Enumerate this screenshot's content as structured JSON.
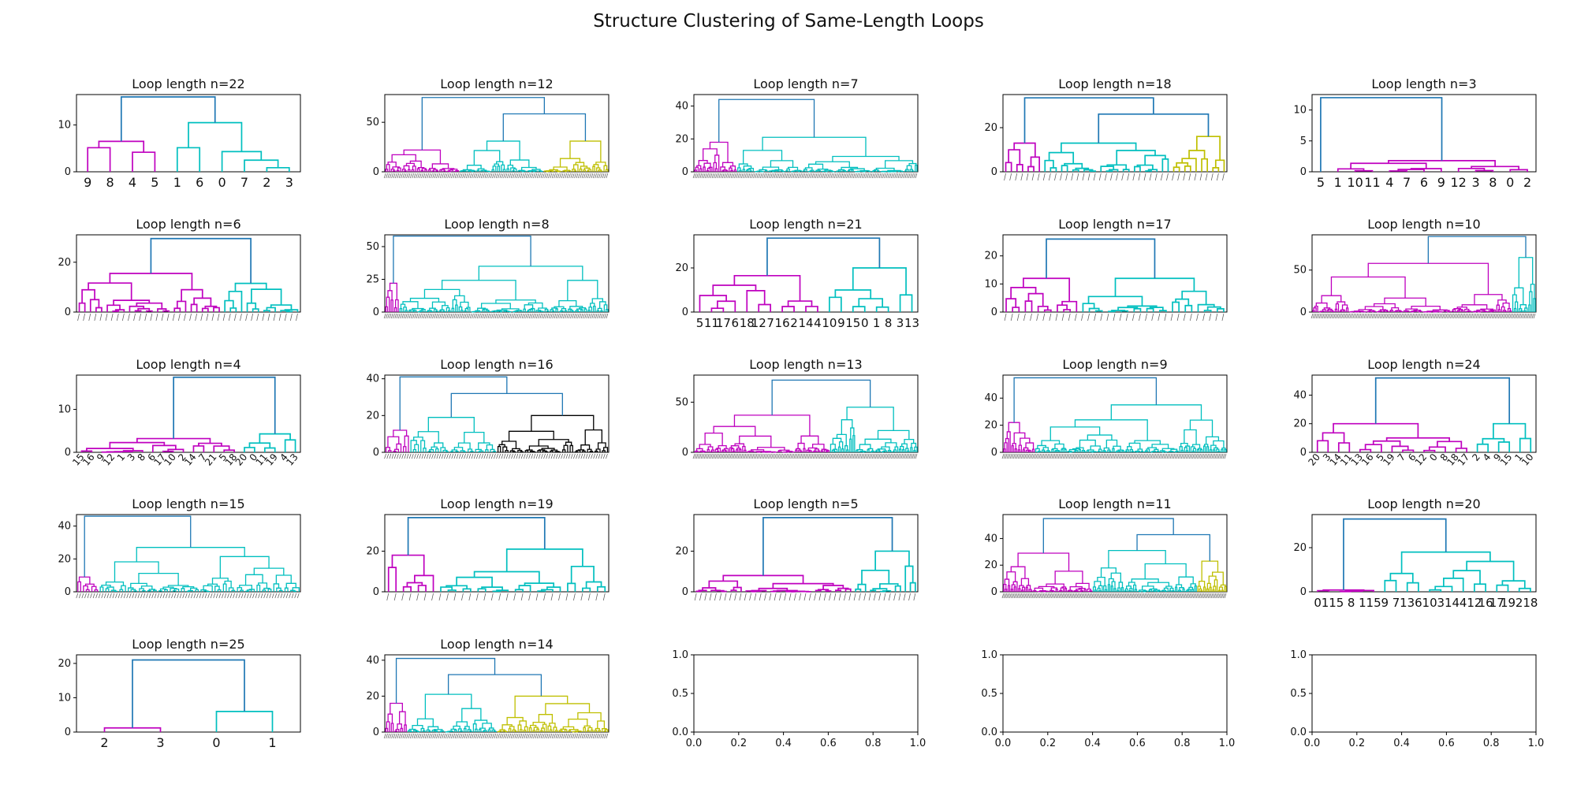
{
  "figure": {
    "title": "Structure Clustering of Same-Length Loops"
  },
  "colors": {
    "link_above_threshold": "#1f77b4",
    "cluster_palette": [
      "#bf00bf",
      "#00bfbf",
      "#bfbf00",
      "#000000"
    ]
  },
  "chart_data": [
    {
      "type": "dendrogram",
      "title": "Loop length n=22",
      "ylim": [
        0,
        16.5
      ],
      "yticks": [
        0,
        10
      ],
      "leaf_labels": [
        "9",
        "8",
        "4",
        "5",
        "1",
        "6",
        "0",
        "7",
        "2",
        "3"
      ],
      "leaf_label_style": "horizontal",
      "cluster_sizes": [
        4,
        6
      ],
      "cluster_colors": [
        "#bf00bf",
        "#00bfbf"
      ],
      "cluster_heights": [
        6.5,
        10.5
      ],
      "top_height": 16
    },
    {
      "type": "dendrogram",
      "title": "Loop length n=12",
      "ylim": [
        0,
        78
      ],
      "yticks": [
        0,
        50
      ],
      "leaf_count": 120,
      "leaf_label_style": "dense",
      "cluster_sizes": [
        40,
        45,
        35
      ],
      "cluster_colors": [
        "#bf00bf",
        "#00bfbf",
        "#bfbf00"
      ],
      "cluster_heights": [
        22,
        31,
        31
      ],
      "top_height": 75
    },
    {
      "type": "dendrogram",
      "title": "Loop length n=7",
      "ylim": [
        0,
        47
      ],
      "yticks": [
        0,
        20,
        40
      ],
      "leaf_count": 130,
      "leaf_label_style": "dense",
      "cluster_sizes": [
        25,
        105
      ],
      "cluster_colors": [
        "#bf00bf",
        "#00bfbf"
      ],
      "cluster_heights": [
        18,
        21
      ],
      "top_height": 44
    },
    {
      "type": "dendrogram",
      "title": "Loop length n=18",
      "ylim": [
        0,
        35
      ],
      "yticks": [
        0,
        20
      ],
      "leaf_count": 40,
      "leaf_label_style": "rotated",
      "cluster_sizes": [
        7,
        23,
        10
      ],
      "cluster_colors": [
        "#bf00bf",
        "#00bfbf",
        "#bfbf00"
      ],
      "cluster_heights": [
        13,
        13,
        16
      ],
      "top_height": 33.5
    },
    {
      "type": "dendrogram",
      "title": "Loop length n=3",
      "ylim": [
        0,
        12.5
      ],
      "yticks": [
        0,
        5,
        10
      ],
      "leaf_labels": [
        "5",
        "1",
        "10",
        "11",
        "4",
        "7",
        "6",
        "9",
        "12",
        "3",
        "8",
        "0",
        "2"
      ],
      "leaf_label_style": "horizontal",
      "cluster_sizes": [
        1,
        12
      ],
      "cluster_colors": [
        "#1f77b4",
        "#bf00bf"
      ],
      "cluster_heights": [
        0,
        1.8
      ],
      "top_height": 12
    },
    {
      "type": "dendrogram",
      "title": "Loop length n=6",
      "ylim": [
        0,
        31
      ],
      "yticks": [
        0,
        20
      ],
      "leaf_count": 40,
      "leaf_label_style": "rotated",
      "cluster_sizes": [
        26,
        14
      ],
      "cluster_colors": [
        "#bf00bf",
        "#00bfbf"
      ],
      "cluster_heights": [
        15.5,
        11.5
      ],
      "top_height": 29.5
    },
    {
      "type": "dendrogram",
      "title": "Loop length n=8",
      "ylim": [
        0,
        59
      ],
      "yticks": [
        0,
        25,
        50
      ],
      "leaf_count": 125,
      "leaf_label_style": "dense",
      "cluster_sizes": [
        8,
        117
      ],
      "cluster_colors": [
        "#bf00bf",
        "#00bfbf"
      ],
      "cluster_heights": [
        22,
        35
      ],
      "top_height": 58
    },
    {
      "type": "dendrogram",
      "title": "Loop length n=21",
      "ylim": [
        0,
        35
      ],
      "yticks": [
        0,
        20
      ],
      "leaf_labels": [
        "5",
        "11",
        "17",
        "6",
        "18",
        "12",
        "7",
        "16",
        "2",
        "14",
        "4",
        "10",
        "9",
        "15",
        "0",
        "1",
        "8",
        "3",
        "13"
      ],
      "leaf_label_style": "horizontal_tight",
      "cluster_sizes": [
        11,
        8
      ],
      "cluster_colors": [
        "#bf00bf",
        "#00bfbf"
      ],
      "cluster_heights": [
        16.5,
        20
      ],
      "top_height": 33.5
    },
    {
      "type": "dendrogram",
      "title": "Loop length n=17",
      "ylim": [
        0,
        27.5
      ],
      "yticks": [
        0,
        10,
        20
      ],
      "leaf_count": 35,
      "leaf_label_style": "rotated",
      "cluster_sizes": [
        12,
        23
      ],
      "cluster_colors": [
        "#bf00bf",
        "#00bfbf"
      ],
      "cluster_heights": [
        12,
        12
      ],
      "top_height": 26
    },
    {
      "type": "dendrogram",
      "title": "Loop length n=10",
      "ylim": [
        0,
        92
      ],
      "yticks": [
        0,
        50
      ],
      "leaf_count": 140,
      "leaf_label_style": "dense",
      "cluster_sizes": [
        125,
        15
      ],
      "cluster_colors": [
        "#bf00bf",
        "#00bfbf"
      ],
      "cluster_heights": [
        58,
        65
      ],
      "top_height": 90
    },
    {
      "type": "dendrogram",
      "title": "Loop length n=4",
      "ylim": [
        0,
        18
      ],
      "yticks": [
        0,
        10
      ],
      "leaf_labels": [
        "15",
        "16",
        "9",
        "12",
        "1",
        "3",
        "8",
        "6",
        "17",
        "10",
        "2",
        "14",
        "7",
        "21",
        "5",
        "18",
        "20",
        "0",
        "11",
        "19",
        "4",
        "13"
      ],
      "leaf_label_style": "rotated_sparse",
      "cluster_sizes": [
        16,
        6
      ],
      "cluster_colors": [
        "#bf00bf",
        "#00bfbf"
      ],
      "cluster_heights": [
        3.2,
        4.3
      ],
      "top_height": 17.5
    },
    {
      "type": "dendrogram",
      "title": "Loop length n=16",
      "ylim": [
        0,
        42
      ],
      "yticks": [
        0,
        20,
        40
      ],
      "leaf_count": 90,
      "leaf_label_style": "dense",
      "cluster_sizes": [
        10,
        35,
        45
      ],
      "cluster_colors": [
        "#bf00bf",
        "#00bfbf",
        "#000000"
      ],
      "cluster_heights": [
        12,
        19,
        20
      ],
      "top_height": 41
    },
    {
      "type": "dendrogram",
      "title": "Loop length n=13",
      "ylim": [
        0,
        77
      ],
      "yticks": [
        0,
        50
      ],
      "leaf_count": 140,
      "leaf_label_style": "dense",
      "cluster_sizes": [
        85,
        55
      ],
      "cluster_colors": [
        "#bf00bf",
        "#00bfbf"
      ],
      "cluster_heights": [
        37,
        45
      ],
      "top_height": 72
    },
    {
      "type": "dendrogram",
      "title": "Loop length n=9",
      "ylim": [
        0,
        57
      ],
      "yticks": [
        0,
        20,
        40
      ],
      "leaf_count": 140,
      "leaf_label_style": "dense",
      "cluster_sizes": [
        20,
        120
      ],
      "cluster_colors": [
        "#bf00bf",
        "#00bfbf"
      ],
      "cluster_heights": [
        22,
        35
      ],
      "top_height": 55
    },
    {
      "type": "dendrogram",
      "title": "Loop length n=24",
      "ylim": [
        0,
        54
      ],
      "yticks": [
        0,
        20,
        40
      ],
      "leaf_labels": [
        "20",
        "3",
        "14",
        "11",
        "13",
        "16",
        "5",
        "19",
        "7",
        "6",
        "12",
        "0",
        "8",
        "18",
        "17",
        "2",
        "4",
        "9",
        "15",
        "1",
        "10"
      ],
      "leaf_label_style": "rotated_sparse",
      "cluster_sizes": [
        15,
        6
      ],
      "cluster_colors": [
        "#bf00bf",
        "#00bfbf"
      ],
      "cluster_heights": [
        20,
        20
      ],
      "top_height": 52
    },
    {
      "type": "dendrogram",
      "title": "Loop length n=15",
      "ylim": [
        0,
        47
      ],
      "yticks": [
        0,
        20,
        40
      ],
      "leaf_count": 80,
      "leaf_label_style": "dense",
      "cluster_sizes": [
        8,
        72
      ],
      "cluster_colors": [
        "#bf00bf",
        "#00bfbf"
      ],
      "cluster_heights": [
        9,
        27
      ],
      "top_height": 46
    },
    {
      "type": "dendrogram",
      "title": "Loop length n=19",
      "ylim": [
        0,
        38
      ],
      "yticks": [
        0,
        20
      ],
      "leaf_count": 30,
      "leaf_label_style": "rotated",
      "cluster_sizes": [
        7,
        23
      ],
      "cluster_colors": [
        "#bf00bf",
        "#00bfbf"
      ],
      "cluster_heights": [
        18,
        21
      ],
      "top_height": 36.5
    },
    {
      "type": "dendrogram",
      "title": "Loop length n=5",
      "ylim": [
        0,
        38
      ],
      "yticks": [
        0,
        20
      ],
      "leaf_count": 45,
      "leaf_label_style": "rotated",
      "cluster_sizes": [
        32,
        13
      ],
      "cluster_colors": [
        "#bf00bf",
        "#00bfbf"
      ],
      "cluster_heights": [
        8,
        20
      ],
      "top_height": 36.5
    },
    {
      "type": "dendrogram",
      "title": "Loop length n=11",
      "ylim": [
        0,
        58
      ],
      "yticks": [
        0,
        20,
        40
      ],
      "leaf_count": 150,
      "leaf_label_style": "dense",
      "cluster_sizes": [
        60,
        70,
        20
      ],
      "cluster_colors": [
        "#bf00bf",
        "#00bfbf",
        "#bfbf00"
      ],
      "cluster_heights": [
        29,
        31,
        23
      ],
      "top_height": 55
    },
    {
      "type": "dendrogram",
      "title": "Loop length n=20",
      "ylim": [
        0,
        35
      ],
      "yticks": [
        0,
        20
      ],
      "leaf_labels": [
        "0",
        "11",
        "5",
        "8",
        "1",
        "15",
        "9",
        "7",
        "13",
        "6",
        "10",
        "3",
        "14",
        "4",
        "12",
        "16",
        "17",
        "19",
        "2",
        "18"
      ],
      "leaf_label_style": "horizontal_tight",
      "cluster_sizes": [
        6,
        14
      ],
      "cluster_colors": [
        "#bf00bf",
        "#00bfbf"
      ],
      "cluster_heights": [
        0.8,
        18
      ],
      "top_height": 33
    },
    {
      "type": "dendrogram",
      "title": "Loop length n=25",
      "ylim": [
        0,
        22.5
      ],
      "yticks": [
        0,
        10,
        20
      ],
      "leaf_labels": [
        "2",
        "3",
        "0",
        "1"
      ],
      "leaf_label_style": "horizontal",
      "cluster_sizes": [
        2,
        2
      ],
      "cluster_colors": [
        "#bf00bf",
        "#00bfbf"
      ],
      "cluster_heights": [
        1.2,
        6
      ],
      "top_height": 21
    },
    {
      "type": "dendrogram",
      "title": "Loop length n=14",
      "ylim": [
        0,
        43
      ],
      "yticks": [
        0,
        20,
        40
      ],
      "leaf_count": 120,
      "leaf_label_style": "dense",
      "cluster_sizes": [
        12,
        48,
        60
      ],
      "cluster_colors": [
        "#bf00bf",
        "#00bfbf",
        "#bfbf00"
      ],
      "cluster_heights": [
        16,
        21,
        20
      ],
      "top_height": 41
    },
    {
      "type": "empty",
      "title": "",
      "xlim": [
        0,
        1
      ],
      "ylim": [
        0,
        1
      ],
      "xticks": [
        "0.0",
        "0.2",
        "0.4",
        "0.6",
        "0.8",
        "1.0"
      ],
      "yticks": [
        "0.0",
        "0.5",
        "1.0"
      ]
    },
    {
      "type": "empty",
      "title": "",
      "xlim": [
        0,
        1
      ],
      "ylim": [
        0,
        1
      ],
      "xticks": [
        "0.0",
        "0.2",
        "0.4",
        "0.6",
        "0.8",
        "1.0"
      ],
      "yticks": [
        "0.0",
        "0.5",
        "1.0"
      ]
    },
    {
      "type": "empty",
      "title": "",
      "xlim": [
        0,
        1
      ],
      "ylim": [
        0,
        1
      ],
      "xticks": [
        "0.0",
        "0.2",
        "0.4",
        "0.6",
        "0.8",
        "1.0"
      ],
      "yticks": [
        "0.0",
        "0.5",
        "1.0"
      ]
    }
  ]
}
